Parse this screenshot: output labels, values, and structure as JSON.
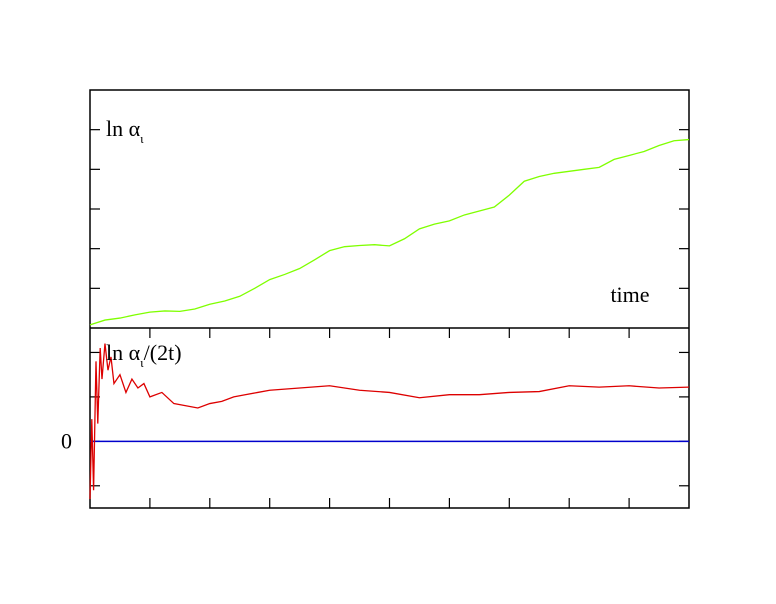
{
  "chart_data": [
    {
      "type": "line",
      "xlim": [
        0,
        10
      ],
      "ylim": [
        0,
        6
      ],
      "yticks": [
        {
          "value": 1,
          "label": null
        },
        {
          "value": 2,
          "label": null
        },
        {
          "value": 3,
          "label": null
        },
        {
          "value": 4,
          "label": null
        },
        {
          "value": 5,
          "label": null
        }
      ],
      "label": [
        "ln α",
        "ι"
      ],
      "xlabel": "time",
      "series": [
        {
          "color": "#7fff00",
          "x": [
            0,
            0.25,
            0.5,
            0.75,
            1,
            1.25,
            1.5,
            1.75,
            2,
            2.25,
            2.5,
            2.75,
            3,
            3.25,
            3.5,
            3.75,
            4,
            4.25,
            4.5,
            4.75,
            5,
            5.25,
            5.5,
            5.75,
            6,
            6.25,
            6.5,
            6.75,
            7,
            7.25,
            7.5,
            7.75,
            8,
            8.25,
            8.5,
            8.75,
            9,
            9.25,
            9.5,
            9.75,
            10
          ],
          "values": [
            0.08,
            0.2,
            0.25,
            0.33,
            0.4,
            0.43,
            0.42,
            0.48,
            0.6,
            0.68,
            0.8,
            1.0,
            1.22,
            1.35,
            1.5,
            1.72,
            1.95,
            2.05,
            2.08,
            2.1,
            2.07,
            2.25,
            2.5,
            2.62,
            2.7,
            2.85,
            2.95,
            3.05,
            3.35,
            3.7,
            3.82,
            3.9,
            3.95,
            4.0,
            4.05,
            4.25,
            4.35,
            4.45,
            4.6,
            4.72,
            4.75
          ]
        }
      ]
    },
    {
      "type": "line",
      "xlim": [
        0,
        10
      ],
      "ylim": [
        -1.5,
        2.55
      ],
      "xticks": [
        {
          "value": 1,
          "label": null
        },
        {
          "value": 2,
          "label": null
        },
        {
          "value": 3,
          "label": null
        },
        {
          "value": 4,
          "label": null
        },
        {
          "value": 5,
          "label": null
        },
        {
          "value": 6,
          "label": null
        },
        {
          "value": 7,
          "label": null
        },
        {
          "value": 8,
          "label": null
        },
        {
          "value": 9,
          "label": null
        }
      ],
      "yticks": [
        {
          "value": -1,
          "label": null
        },
        0,
        {
          "value": 1,
          "label": null
        },
        {
          "value": 2,
          "label": null
        }
      ],
      "hline": {
        "value": 0,
        "color": "#0000cc"
      },
      "label": [
        "ln α",
        "ι",
        "/(2t)"
      ],
      "series": [
        {
          "color": "#dd0000",
          "x": [
            0,
            0.03,
            0.06,
            0.1,
            0.13,
            0.17,
            0.2,
            0.25,
            0.3,
            0.35,
            0.4,
            0.5,
            0.6,
            0.7,
            0.8,
            0.9,
            1.0,
            1.2,
            1.4,
            1.6,
            1.8,
            2.0,
            2.2,
            2.4,
            2.6,
            2.8,
            3,
            3.5,
            4,
            4.5,
            5,
            5.5,
            6,
            6.5,
            7,
            7.5,
            8,
            8.5,
            9,
            9.5,
            10
          ],
          "values": [
            -1.3,
            0.5,
            -1.1,
            1.8,
            0.4,
            2.1,
            1.4,
            2.2,
            1.6,
            1.9,
            1.3,
            1.5,
            1.1,
            1.4,
            1.2,
            1.3,
            1.0,
            1.1,
            0.85,
            0.8,
            0.75,
            0.85,
            0.9,
            1.0,
            1.05,
            1.1,
            1.15,
            1.2,
            1.25,
            1.15,
            1.1,
            0.98,
            1.05,
            1.05,
            1.1,
            1.12,
            1.25,
            1.22,
            1.25,
            1.2,
            1.22
          ]
        }
      ]
    }
  ]
}
